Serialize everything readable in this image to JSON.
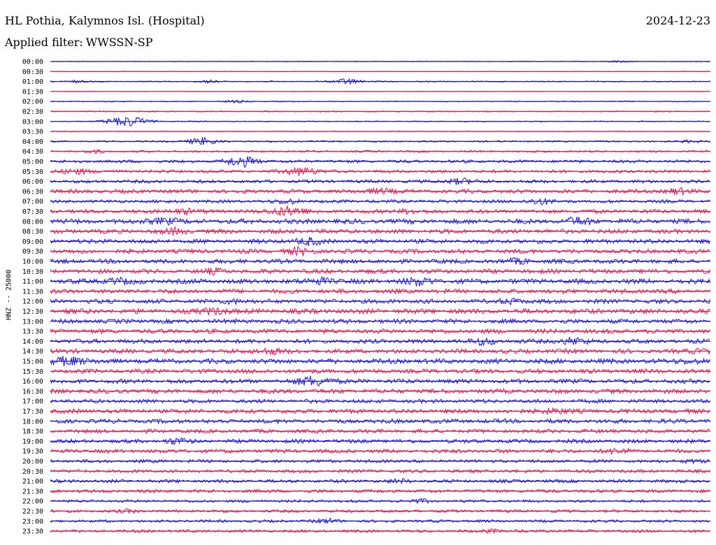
{
  "header": {
    "title": "HL Pothia, Kalymnos Isl. (Hospital)",
    "date": "2024-12-23",
    "filter_label": "Applied filter:",
    "filter_value": "WWSSN-SP"
  },
  "colors": {
    "trace_blue": "#1b14e0",
    "trace_red": "#f0104a",
    "text": "#000000",
    "background": "#ffffff"
  },
  "chart_data": {
    "type": "line",
    "title": "HL Pothia, Kalymnos Isl. (Hospital)",
    "ylabel": "HNZ -- 25000",
    "xlabel": "",
    "row_interval_minutes": 30,
    "legend": "none",
    "grid": false,
    "series": [
      {
        "color": "#1b14e0",
        "rows": [
          "00:00",
          "01:00",
          "02:00",
          "03:00",
          "04:00",
          "05:00",
          "06:00",
          "07:00",
          "08:00",
          "09:00",
          "10:00",
          "11:00",
          "12:00",
          "13:00",
          "14:00",
          "15:00",
          "16:00",
          "17:00",
          "18:00",
          "19:00",
          "20:00",
          "21:00",
          "22:00",
          "23:00"
        ]
      },
      {
        "color": "#f0104a",
        "rows": [
          "00:30",
          "01:30",
          "02:30",
          "03:30",
          "04:30",
          "05:30",
          "06:30",
          "07:30",
          "08:30",
          "09:30",
          "10:30",
          "11:30",
          "12:30",
          "13:30",
          "14:30",
          "15:30",
          "16:30",
          "17:30",
          "18:30",
          "19:30",
          "20:30",
          "21:30",
          "22:30",
          "23:30"
        ]
      }
    ],
    "rows": [
      {
        "label": "00:00",
        "level": 0.15,
        "events": [
          [
            0.86,
            0.5
          ]
        ]
      },
      {
        "label": "00:30",
        "level": 0.1,
        "events": []
      },
      {
        "label": "01:00",
        "level": 0.2,
        "events": [
          [
            0.45,
            1.3
          ],
          [
            0.04,
            0.5
          ],
          [
            0.24,
            0.5
          ]
        ]
      },
      {
        "label": "01:30",
        "level": 0.1,
        "events": []
      },
      {
        "label": "02:00",
        "level": 0.2,
        "events": [
          [
            0.28,
            0.5
          ]
        ]
      },
      {
        "label": "02:30",
        "level": 0.2,
        "events": []
      },
      {
        "label": "03:00",
        "level": 0.2,
        "events": [
          [
            0.12,
            2.3
          ],
          [
            0.09,
            0.6
          ]
        ]
      },
      {
        "label": "03:30",
        "level": 0.15,
        "events": []
      },
      {
        "label": "04:00",
        "level": 0.3,
        "events": [
          [
            0.23,
            1.6
          ],
          [
            0.97,
            0.6
          ]
        ]
      },
      {
        "label": "04:30",
        "level": 0.35,
        "events": [
          [
            0.07,
            0.6
          ]
        ]
      },
      {
        "label": "05:00",
        "level": 0.55,
        "events": [
          [
            0.29,
            2.0
          ]
        ]
      },
      {
        "label": "05:30",
        "level": 0.55,
        "events": [
          [
            0.04,
            1.2
          ],
          [
            0.38,
            1.8
          ]
        ]
      },
      {
        "label": "06:00",
        "level": 0.6,
        "events": [
          [
            0.62,
            1.2
          ]
        ]
      },
      {
        "label": "06:30",
        "level": 0.7,
        "events": [
          [
            0.5,
            1.1
          ],
          [
            0.95,
            1.0
          ]
        ]
      },
      {
        "label": "07:00",
        "level": 0.6,
        "events": [
          [
            0.36,
            0.9
          ],
          [
            0.74,
            1.2
          ]
        ]
      },
      {
        "label": "07:30",
        "level": 0.7,
        "events": [
          [
            0.36,
            2.0
          ],
          [
            0.2,
            1.0
          ],
          [
            0.54,
            0.8
          ]
        ]
      },
      {
        "label": "08:00",
        "level": 0.9,
        "events": [
          [
            0.17,
            1.2
          ],
          [
            0.8,
            1.3
          ]
        ]
      },
      {
        "label": "08:30",
        "level": 0.8,
        "events": [
          [
            0.19,
            1.0
          ]
        ]
      },
      {
        "label": "09:00",
        "level": 0.8,
        "events": [
          [
            0.39,
            1.2
          ]
        ]
      },
      {
        "label": "09:30",
        "level": 0.8,
        "events": [
          [
            0.38,
            1.2
          ]
        ]
      },
      {
        "label": "10:00",
        "level": 0.8,
        "events": [
          [
            0.71,
            0.8
          ]
        ]
      },
      {
        "label": "10:30",
        "level": 0.8,
        "events": [
          [
            0.25,
            0.8
          ]
        ]
      },
      {
        "label": "11:00",
        "level": 0.9,
        "events": [
          [
            0.56,
            1.4
          ],
          [
            0.41,
            1.2
          ],
          [
            0.1,
            1.0
          ]
        ]
      },
      {
        "label": "11:30",
        "level": 0.8,
        "events": []
      },
      {
        "label": "12:00",
        "level": 0.8,
        "events": [
          [
            0.7,
            1.0
          ],
          [
            0.28,
            0.8
          ]
        ]
      },
      {
        "label": "12:30",
        "level": 0.9,
        "events": [
          [
            0.25,
            1.2
          ]
        ]
      },
      {
        "label": "13:00",
        "level": 0.8,
        "events": []
      },
      {
        "label": "13:30",
        "level": 0.8,
        "events": []
      },
      {
        "label": "14:00",
        "level": 0.8,
        "events": [
          [
            0.66,
            1.1
          ],
          [
            0.79,
            1.3
          ]
        ]
      },
      {
        "label": "14:30",
        "level": 0.8,
        "events": [
          [
            0.33,
            1.1
          ],
          [
            0.99,
            0.8
          ]
        ]
      },
      {
        "label": "15:00",
        "level": 0.9,
        "events": [
          [
            0.03,
            1.7
          ],
          [
            0.97,
            0.8
          ]
        ]
      },
      {
        "label": "15:30",
        "level": 0.8,
        "events": []
      },
      {
        "label": "16:00",
        "level": 0.8,
        "events": [
          [
            0.4,
            2.0
          ]
        ]
      },
      {
        "label": "16:30",
        "level": 0.8,
        "events": []
      },
      {
        "label": "17:00",
        "level": 0.7,
        "events": []
      },
      {
        "label": "17:30",
        "level": 0.8,
        "events": [
          [
            0.76,
            1.0
          ]
        ]
      },
      {
        "label": "18:00",
        "level": 0.8,
        "events": []
      },
      {
        "label": "18:30",
        "level": 0.7,
        "events": []
      },
      {
        "label": "19:00",
        "level": 0.7,
        "events": [
          [
            0.19,
            1.0
          ]
        ]
      },
      {
        "label": "19:30",
        "level": 0.7,
        "events": [
          [
            0.86,
            1.0
          ]
        ]
      },
      {
        "label": "20:00",
        "level": 0.6,
        "events": [
          [
            0.97,
            0.6
          ]
        ]
      },
      {
        "label": "20:30",
        "level": 0.6,
        "events": []
      },
      {
        "label": "21:00",
        "level": 0.6,
        "events": [
          [
            0.53,
            0.6
          ]
        ]
      },
      {
        "label": "21:30",
        "level": 0.6,
        "events": []
      },
      {
        "label": "22:00",
        "level": 0.5,
        "events": [
          [
            0.56,
            0.6
          ]
        ]
      },
      {
        "label": "22:30",
        "level": 0.5,
        "events": [
          [
            0.12,
            0.6
          ]
        ]
      },
      {
        "label": "23:00",
        "level": 0.5,
        "events": [
          [
            0.42,
            0.8
          ]
        ]
      },
      {
        "label": "23:30",
        "level": 0.5,
        "events": [
          [
            0.67,
            0.6
          ]
        ]
      }
    ]
  }
}
